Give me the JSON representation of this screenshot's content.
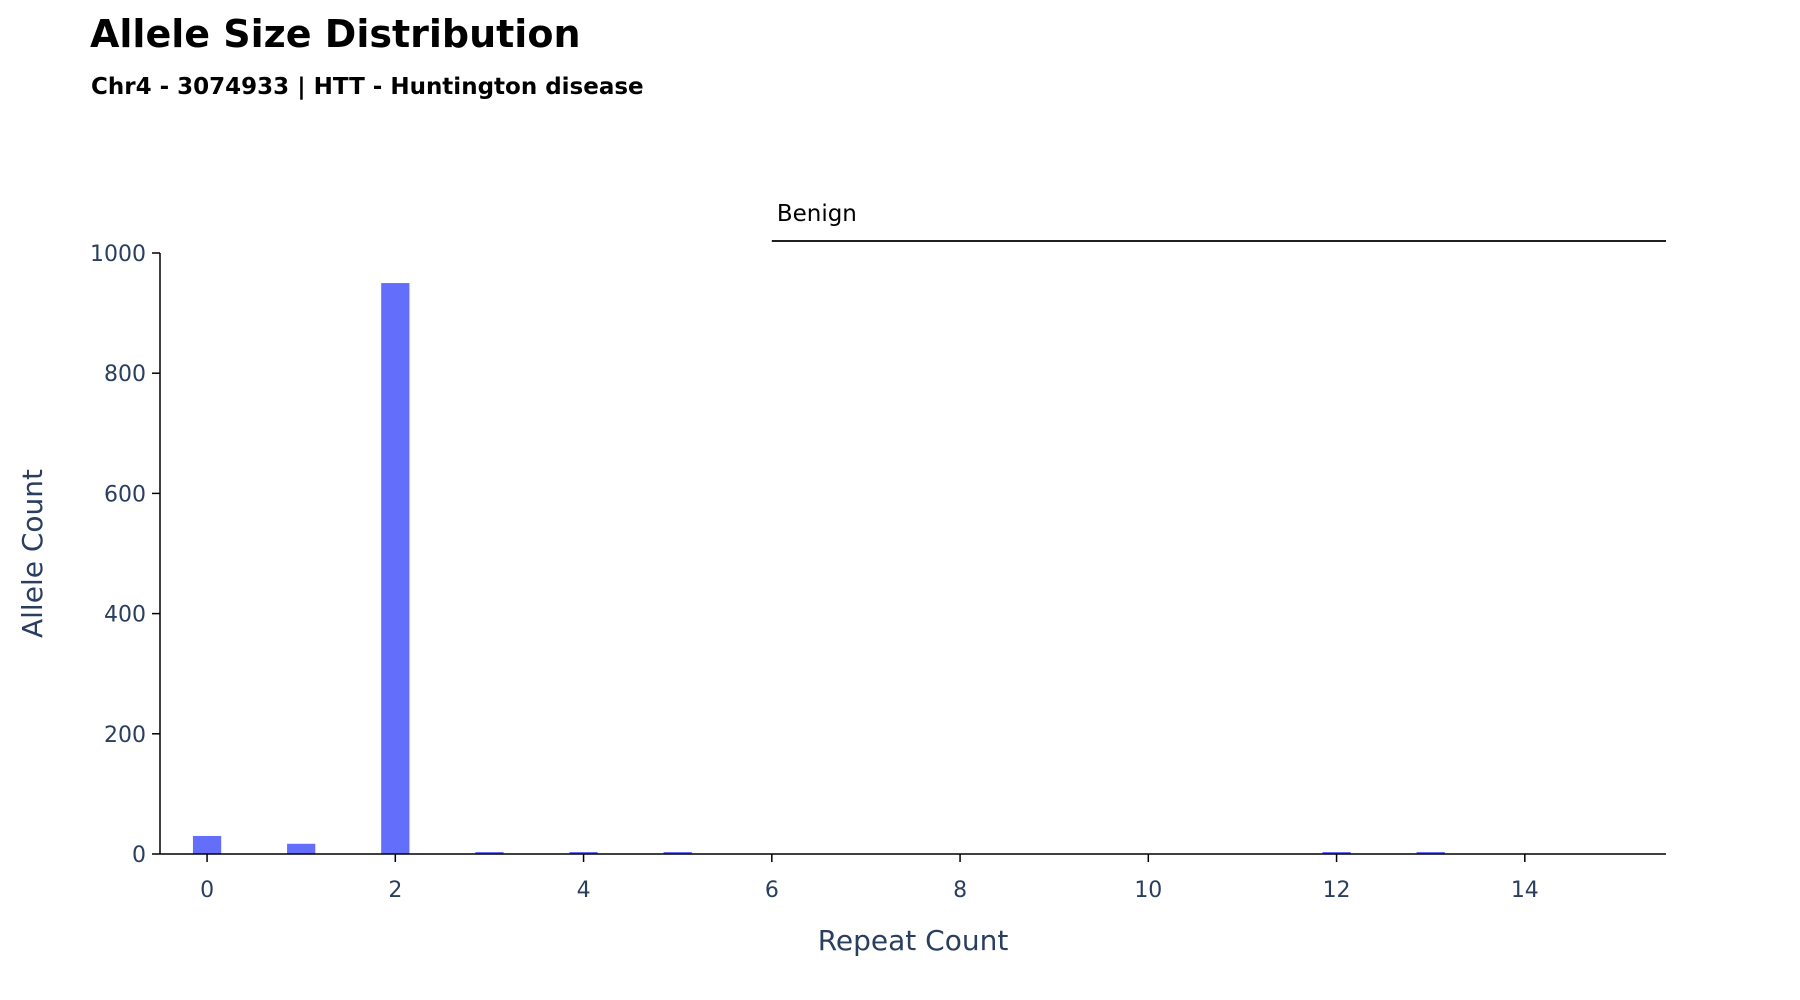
{
  "chart_data": {
    "type": "bar",
    "title": "Allele Size Distribution",
    "subtitle": "Chr4 - 3074933 | HTT - Huntington disease",
    "xlabel": "Repeat Count",
    "ylabel": "Allele Count",
    "x": [
      0,
      1,
      2,
      3,
      4,
      5,
      12,
      13
    ],
    "values": [
      30,
      17,
      950,
      1,
      1,
      2,
      1,
      1
    ],
    "xlim": [
      -0.5,
      15.5
    ],
    "ylim": [
      0,
      1000
    ],
    "x_ticks": [
      0,
      2,
      4,
      6,
      8,
      10,
      12,
      14
    ],
    "y_ticks": [
      0,
      200,
      400,
      600,
      800,
      1000
    ],
    "bar_color": "#636efa",
    "grid": false,
    "legend": "none",
    "annotations": [
      {
        "text": "Benign",
        "x_start": 6,
        "x_end": 15.5
      }
    ]
  }
}
